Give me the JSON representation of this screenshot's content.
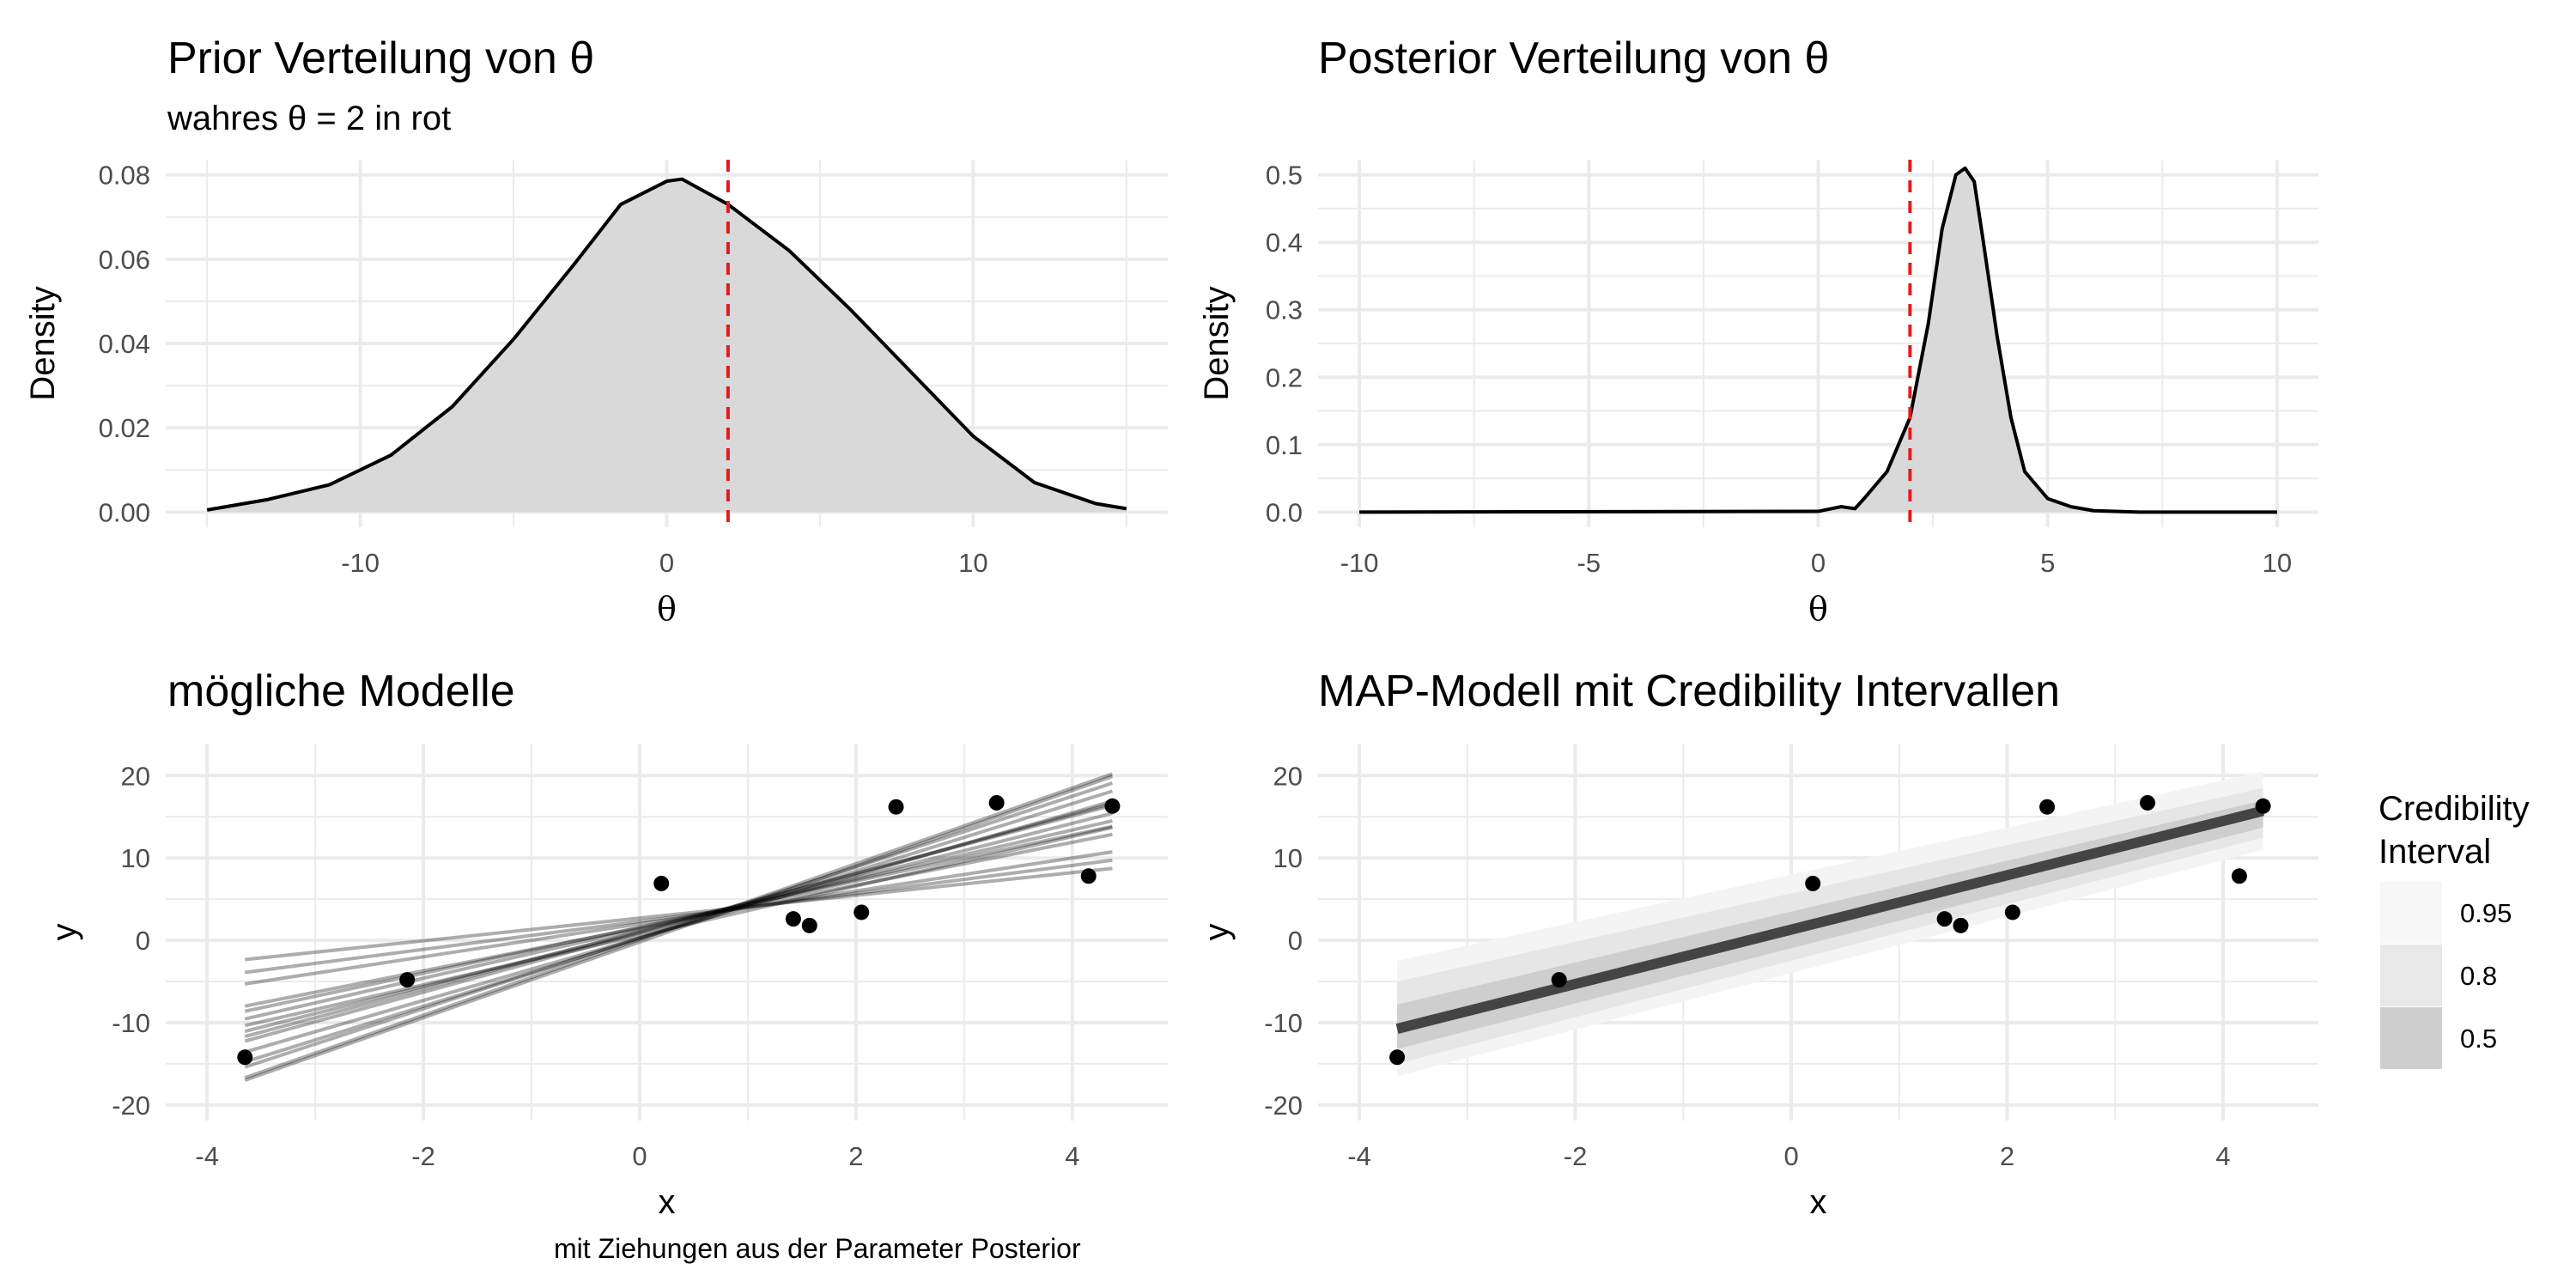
{
  "panels": {
    "prior": {
      "title": "Prior Verteilung von θ",
      "subtitle": "wahres θ = 2 in rot"
    },
    "posterior": {
      "title": "Posterior Verteilung von θ"
    },
    "models": {
      "title": "mögliche Modelle",
      "caption": "mit Ziehungen aus der Parameter Posterior"
    },
    "map": {
      "title": "MAP-Modell mit Credibility Intervallen"
    }
  },
  "colors": {
    "density_fill": "#d9d9d9",
    "true_theta": "#e41a1c",
    "grid": "#ebebeb",
    "points": "#000000",
    "map_line": "#444444"
  },
  "chart_data": [
    {
      "id": "prior",
      "type": "area",
      "title": "Prior Verteilung von θ",
      "subtitle": "wahres θ = 2 in rot",
      "xlabel": "θ",
      "ylabel": "Density",
      "xlim": [
        -15,
        15
      ],
      "ylim": [
        0,
        0.08
      ],
      "xticks": [
        -10,
        0,
        10
      ],
      "yticks": [
        0,
        0.02,
        0.04,
        0.06,
        0.08
      ],
      "ytick_labels": [
        "0.00",
        "0.02",
        "0.04",
        "0.06",
        "0.08"
      ],
      "reference_line": {
        "x": 2,
        "style": "dashed",
        "color": "red"
      },
      "x": [
        -15,
        -13,
        -11,
        -9,
        -7,
        -5,
        -3,
        -1.5,
        0,
        0.5,
        2,
        4,
        6,
        8,
        10,
        12,
        14,
        15
      ],
      "y": [
        0.0005,
        0.003,
        0.0065,
        0.0135,
        0.025,
        0.041,
        0.059,
        0.073,
        0.0785,
        0.079,
        0.073,
        0.062,
        0.048,
        0.033,
        0.018,
        0.007,
        0.002,
        0.0008
      ],
      "grid": true
    },
    {
      "id": "posterior",
      "type": "area",
      "title": "Posterior Verteilung von θ",
      "xlabel": "θ",
      "ylabel": "Density",
      "xlim": [
        -10,
        10
      ],
      "ylim": [
        0,
        0.5
      ],
      "xticks": [
        -10,
        -5,
        0,
        5,
        10
      ],
      "yticks": [
        0,
        0.1,
        0.2,
        0.3,
        0.4,
        0.5
      ],
      "ytick_labels": [
        "0.0",
        "0.1",
        "0.2",
        "0.3",
        "0.4",
        "0.5"
      ],
      "reference_line": {
        "x": 2,
        "style": "dashed",
        "color": "red"
      },
      "x": [
        -10,
        0,
        0.5,
        0.8,
        1.0,
        1.5,
        2.0,
        2.4,
        2.7,
        3.0,
        3.2,
        3.4,
        3.6,
        3.9,
        4.2,
        4.5,
        5.0,
        5.5,
        6.0,
        7.0,
        10
      ],
      "y": [
        0,
        0.001,
        0.008,
        0.005,
        0.02,
        0.06,
        0.14,
        0.28,
        0.42,
        0.5,
        0.51,
        0.49,
        0.4,
        0.26,
        0.14,
        0.06,
        0.02,
        0.008,
        0.002,
        0,
        0
      ],
      "grid": true
    },
    {
      "id": "models",
      "type": "scatter",
      "title": "mögliche Modelle",
      "caption": "mit Ziehungen aus der Parameter Posterior",
      "xlabel": "x",
      "ylabel": "y",
      "xlim": [
        -4,
        4.5
      ],
      "ylim": [
        -20,
        22
      ],
      "xticks": [
        -4,
        -2,
        0,
        2,
        4
      ],
      "yticks": [
        -20,
        -10,
        0,
        10,
        20
      ],
      "points": {
        "x": [
          -3.65,
          -2.15,
          0.2,
          1.42,
          1.57,
          2.05,
          2.37,
          3.3,
          4.15,
          4.37
        ],
        "y": [
          -14.2,
          -4.8,
          6.9,
          2.6,
          1.8,
          3.4,
          16.2,
          16.7,
          7.8,
          16.3
        ]
      },
      "lines": [
        {
          "intercept": 2.7,
          "slope": 1.38
        },
        {
          "intercept": 2.3,
          "slope": 1.7
        },
        {
          "intercept": 2.0,
          "slope": 2.0
        },
        {
          "intercept": 1.5,
          "slope": 2.6
        },
        {
          "intercept": 1.6,
          "slope": 2.8
        },
        {
          "intercept": 1.4,
          "slope": 3.0
        },
        {
          "intercept": 1.0,
          "slope": 3.3
        },
        {
          "intercept": 1.1,
          "slope": 3.5
        },
        {
          "intercept": 0.9,
          "slope": 3.6
        },
        {
          "intercept": 0.3,
          "slope": 3.8
        },
        {
          "intercept": 0.2,
          "slope": 4.1
        },
        {
          "intercept": 0.3,
          "slope": 4.3
        },
        {
          "intercept": 0.1,
          "slope": 4.6
        },
        {
          "intercept": -0.2,
          "slope": 4.6
        },
        {
          "intercept": 0.6,
          "slope": 3.0
        }
      ],
      "grid": true
    },
    {
      "id": "map",
      "type": "scatter",
      "title": "MAP-Modell mit Credibility Intervallen",
      "xlabel": "x",
      "ylabel": "y",
      "xlim": [
        -4,
        4.5
      ],
      "ylim": [
        -20,
        22
      ],
      "xticks": [
        -4,
        -2,
        0,
        2,
        4
      ],
      "yticks": [
        -20,
        -10,
        0,
        10,
        20
      ],
      "points": {
        "x": [
          -3.65,
          -2.15,
          0.2,
          1.42,
          1.57,
          2.05,
          2.37,
          3.3,
          4.15,
          4.37
        ],
        "y": [
          -14.2,
          -4.8,
          6.9,
          2.6,
          1.8,
          3.4,
          16.2,
          16.7,
          7.8,
          16.3
        ]
      },
      "map_line": {
        "intercept": 1.3,
        "slope": 3.3
      },
      "intervals": [
        {
          "level": "0.95",
          "at_xmin": [
            -16.5,
            -2.5
          ],
          "at_xmax": [
            11.0,
            20.5
          ]
        },
        {
          "level": "0.8",
          "at_xmin": [
            -15.0,
            -5.0
          ],
          "at_xmax": [
            12.5,
            18.5
          ]
        },
        {
          "level": "0.5",
          "at_xmin": [
            -13.2,
            -7.8
          ],
          "at_xmax": [
            13.7,
            17.0
          ]
        }
      ],
      "legend": {
        "title": "Credibility\nInterval",
        "position": "right",
        "entries": [
          {
            "label": "0.95",
            "color": "#f7f7f7"
          },
          {
            "label": "0.8",
            "color": "#e8e8e8"
          },
          {
            "label": "0.5",
            "color": "#cfcfcf"
          }
        ]
      },
      "grid": true
    }
  ]
}
